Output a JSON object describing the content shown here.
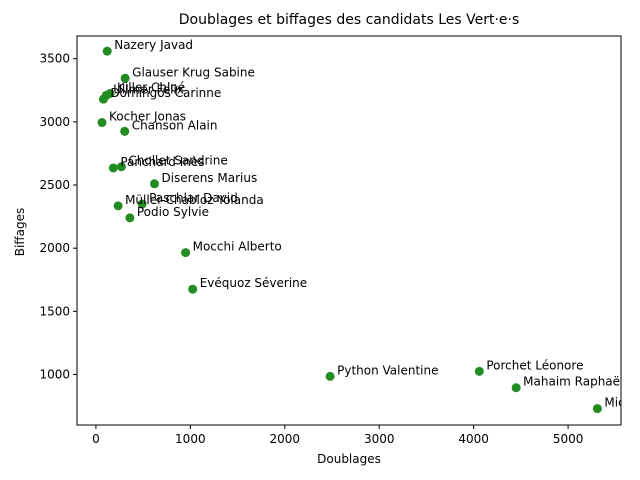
{
  "chart_data": {
    "type": "scatter",
    "title": "Doublages et biffages des candidats Les Vert·e·s",
    "xlabel": "Doublages",
    "ylabel": "Biffages",
    "xlim": [
      -200,
      5560
    ],
    "ylim": [
      600,
      3680
    ],
    "xticks": [
      0,
      1000,
      2000,
      3000,
      4000,
      5000
    ],
    "yticks": [
      1000,
      1500,
      2000,
      2500,
      3000,
      3500
    ],
    "grid": false,
    "marker_color": "#228B22",
    "points": [
      {
        "label": "Nazery Javad",
        "x": 120,
        "y": 3560
      },
      {
        "label": "Glauser Krug Sabine",
        "x": 310,
        "y": 3345
      },
      {
        "label": "Killer Chloé",
        "x": 150,
        "y": 3225
      },
      {
        "label": "Ullmer Felix",
        "x": 110,
        "y": 3210
      },
      {
        "label": "Domingos Carinne",
        "x": 80,
        "y": 3180
      },
      {
        "label": "Kocher Jonas",
        "x": 65,
        "y": 2995
      },
      {
        "label": "Chanson Alain",
        "x": 305,
        "y": 2925
      },
      {
        "label": "Chollet Sandrine",
        "x": 270,
        "y": 2645
      },
      {
        "label": "Panchard Inès",
        "x": 185,
        "y": 2635
      },
      {
        "label": "Diserens Marius",
        "x": 620,
        "y": 2510
      },
      {
        "label": "Paschlar David",
        "x": 490,
        "y": 2350
      },
      {
        "label": "Müller-Chabloz Yolanda",
        "x": 235,
        "y": 2335
      },
      {
        "label": "Podio Sylvie",
        "x": 360,
        "y": 2240
      },
      {
        "label": "Mocchi Alberto",
        "x": 950,
        "y": 1965
      },
      {
        "label": "Evéquoz Séverine",
        "x": 1025,
        "y": 1675
      },
      {
        "label": "Python Valentine",
        "x": 2480,
        "y": 985
      },
      {
        "label": "Porchet Léonore",
        "x": 4060,
        "y": 1025
      },
      {
        "label": "Mahaim Raphaël",
        "x": 4450,
        "y": 895
      },
      {
        "label": "Micha",
        "x": 5310,
        "y": 730
      }
    ]
  }
}
